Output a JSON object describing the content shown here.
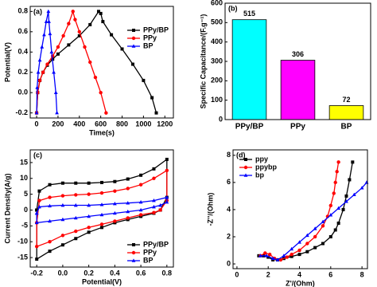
{
  "chart_data": [
    {
      "type": "line",
      "panel_label": "(a)",
      "x_label": "Time(s)",
      "y_label": "Potential(V)",
      "xlim": [
        -60,
        1280
      ],
      "xticks": [
        0,
        200,
        400,
        600,
        800,
        1000,
        1200
      ],
      "ylim": [
        -0.25,
        0.85
      ],
      "yticks": [
        {
          "value": -0.2,
          "label": "-0.2"
        },
        {
          "value": 0,
          "label": "0.0"
        },
        {
          "value": 0.2,
          "label": "0.2"
        },
        {
          "value": 0.4,
          "label": "0.4"
        },
        {
          "value": 0.6,
          "label": "0.6"
        },
        {
          "value": 0.8,
          "label": "0.8"
        }
      ],
      "legend": "upper right",
      "series": [
        {
          "name": "PPy/BP",
          "color": "#000000",
          "marker": "square",
          "x": [
            0,
            10,
            30,
            60,
            100,
            150,
            200,
            300,
            400,
            500,
            580,
            600,
            620,
            700,
            800,
            900,
            1000,
            1080,
            1120
          ],
          "values": [
            -0.2,
            0.0,
            0.12,
            0.2,
            0.27,
            0.33,
            0.38,
            0.47,
            0.56,
            0.67,
            0.8,
            0.78,
            0.7,
            0.57,
            0.43,
            0.28,
            0.12,
            -0.05,
            -0.2
          ]
        },
        {
          "name": "PPy",
          "color": "#ff0000",
          "marker": "circle",
          "x": [
            0,
            10,
            30,
            60,
            100,
            150,
            200,
            250,
            300,
            340,
            360,
            400,
            450,
            500,
            550,
            600,
            650
          ],
          "values": [
            -0.2,
            0.0,
            0.12,
            0.2,
            0.28,
            0.36,
            0.45,
            0.56,
            0.68,
            0.8,
            0.72,
            0.6,
            0.45,
            0.3,
            0.15,
            0.0,
            -0.2
          ]
        },
        {
          "name": "BP",
          "color": "#0000ff",
          "marker": "triangle",
          "x": [
            0,
            5,
            15,
            30,
            50,
            70,
            90,
            110,
            115,
            125,
            140,
            160,
            180,
            190
          ],
          "values": [
            -0.2,
            0.05,
            0.2,
            0.32,
            0.45,
            0.57,
            0.7,
            0.8,
            0.7,
            0.58,
            0.4,
            0.2,
            0.0,
            -0.2
          ]
        }
      ]
    },
    {
      "type": "bar",
      "panel_label": "(b)",
      "y_label": "Specific Capacitance/(F.g⁻¹)",
      "categories": [
        "PPy/BP",
        "PPy",
        "BP"
      ],
      "values": [
        515,
        306,
        72
      ],
      "colors": [
        "#00ffff",
        "#ff00ff",
        "#ffff00"
      ],
      "ylim": [
        0,
        600
      ],
      "yticks": [
        0,
        100,
        200,
        300,
        400,
        500,
        600
      ]
    },
    {
      "type": "line",
      "panel_label": "(c)",
      "x_label": "Potential(V)",
      "y_label": "Current Density(A/g)",
      "xlim": [
        -0.25,
        0.85
      ],
      "xticks": [
        {
          "value": -0.2,
          "label": "-0.2"
        },
        {
          "value": 0,
          "label": "0.0"
        },
        {
          "value": 0.2,
          "label": "0.2"
        },
        {
          "value": 0.4,
          "label": "0.4"
        },
        {
          "value": 0.6,
          "label": "0.6"
        },
        {
          "value": 0.8,
          "label": "0.8"
        }
      ],
      "ylim": [
        -18,
        19
      ],
      "yticks": [
        -15,
        -10,
        -5,
        0,
        5,
        10,
        15
      ],
      "legend": "lower right",
      "series": [
        {
          "name": "PPy/BP",
          "color": "#000000",
          "marker": "square",
          "x": [
            -0.2,
            -0.18,
            -0.1,
            0,
            0.1,
            0.2,
            0.3,
            0.4,
            0.5,
            0.6,
            0.7,
            0.8,
            0.8,
            0.75,
            0.7,
            0.6,
            0.5,
            0.4,
            0.3,
            0.2,
            0.1,
            0,
            -0.1,
            -0.2,
            -0.2
          ],
          "values": [
            0,
            6,
            8,
            8.5,
            8.5,
            8.5,
            8.7,
            9,
            9.8,
            11,
            13,
            16,
            4,
            0,
            -1,
            -2,
            -3,
            -4,
            -5.5,
            -7,
            -9,
            -11,
            -13,
            -15.5,
            0
          ]
        },
        {
          "name": "PPy",
          "color": "#ff0000",
          "marker": "circle",
          "x": [
            -0.2,
            -0.18,
            -0.1,
            0,
            0.1,
            0.2,
            0.3,
            0.4,
            0.5,
            0.6,
            0.7,
            0.8,
            0.8,
            0.75,
            0.7,
            0.6,
            0.5,
            0.4,
            0.3,
            0.2,
            0.1,
            0,
            -0.1,
            -0.2,
            -0.2
          ],
          "values": [
            -4,
            3,
            4,
            4.5,
            4.8,
            5,
            5.4,
            6,
            6.8,
            8,
            10,
            12.5,
            3,
            0,
            -0.8,
            -1.5,
            -2.5,
            -3.5,
            -4.5,
            -5.5,
            -6.7,
            -8,
            -10,
            -11.5,
            -4
          ]
        },
        {
          "name": "BP",
          "color": "#0000ff",
          "marker": "triangle",
          "x": [
            -0.2,
            -0.18,
            -0.1,
            0,
            0.1,
            0.2,
            0.3,
            0.4,
            0.5,
            0.6,
            0.7,
            0.8,
            0.8,
            0.75,
            0.7,
            0.6,
            0.5,
            0.4,
            0.3,
            0.2,
            0.1,
            0,
            -0.1,
            -0.2,
            -0.2
          ],
          "values": [
            -1,
            1,
            1.3,
            1.5,
            1.5,
            1.5,
            1.7,
            2,
            2.2,
            2.5,
            3,
            4,
            2.5,
            1.5,
            1,
            0,
            -0.5,
            -1,
            -1.5,
            -2,
            -2.5,
            -3,
            -3.5,
            -4,
            -1
          ]
        }
      ]
    },
    {
      "type": "line",
      "panel_label": "(d)",
      "x_label": "Z'/(Ohm)",
      "y_label": "-Z''/(Ohm)",
      "xlim": [
        -0.25,
        8.35
      ],
      "xticks": [
        0,
        2,
        4,
        6,
        8
      ],
      "ylim": [
        -0.35,
        8.4
      ],
      "yticks": [
        0,
        2,
        4,
        6,
        8
      ],
      "legend": "upper left",
      "series": [
        {
          "name": "ppy",
          "color": "#000000",
          "marker": "square",
          "x": [
            1.4,
            1.7,
            2.0,
            2.3,
            2.6,
            3.0,
            3.5,
            4.0,
            4.5,
            5.0,
            5.5,
            6.0,
            6.3,
            6.5,
            6.8,
            7.0,
            7.2,
            7.4
          ],
          "values": [
            0.6,
            0.6,
            0.5,
            0.3,
            0.3,
            0.4,
            0.55,
            0.7,
            0.9,
            1.2,
            1.5,
            2.0,
            2.5,
            3.0,
            4.0,
            5.0,
            6.2,
            7.5
          ]
        },
        {
          "name": "ppybp",
          "color": "#ff0000",
          "marker": "circle",
          "x": [
            1.5,
            1.8,
            2.1,
            2.4,
            2.8,
            3.2,
            3.5,
            4.0,
            4.5,
            5.0,
            5.5,
            5.8,
            6.0,
            6.2,
            6.3,
            6.4,
            6.5
          ],
          "values": [
            0.6,
            0.8,
            0.7,
            0.4,
            0.3,
            0.5,
            0.7,
            1.0,
            1.5,
            2.0,
            2.8,
            3.5,
            4.3,
            5.2,
            6.0,
            6.8,
            7.5
          ]
        },
        {
          "name": "bp",
          "color": "#0000ff",
          "marker": "triangle",
          "x": [
            1.5,
            1.9,
            2.3,
            2.6,
            3.0,
            3.5,
            4.0,
            4.5,
            5.0,
            5.5,
            6.0,
            6.5,
            7.0,
            7.5,
            8.0,
            8.3
          ],
          "values": [
            0.6,
            0.6,
            0.4,
            0.3,
            0.6,
            1.1,
            1.6,
            2.1,
            2.6,
            3.1,
            3.6,
            4.1,
            4.6,
            5.1,
            5.6,
            6.0
          ]
        }
      ]
    }
  ]
}
